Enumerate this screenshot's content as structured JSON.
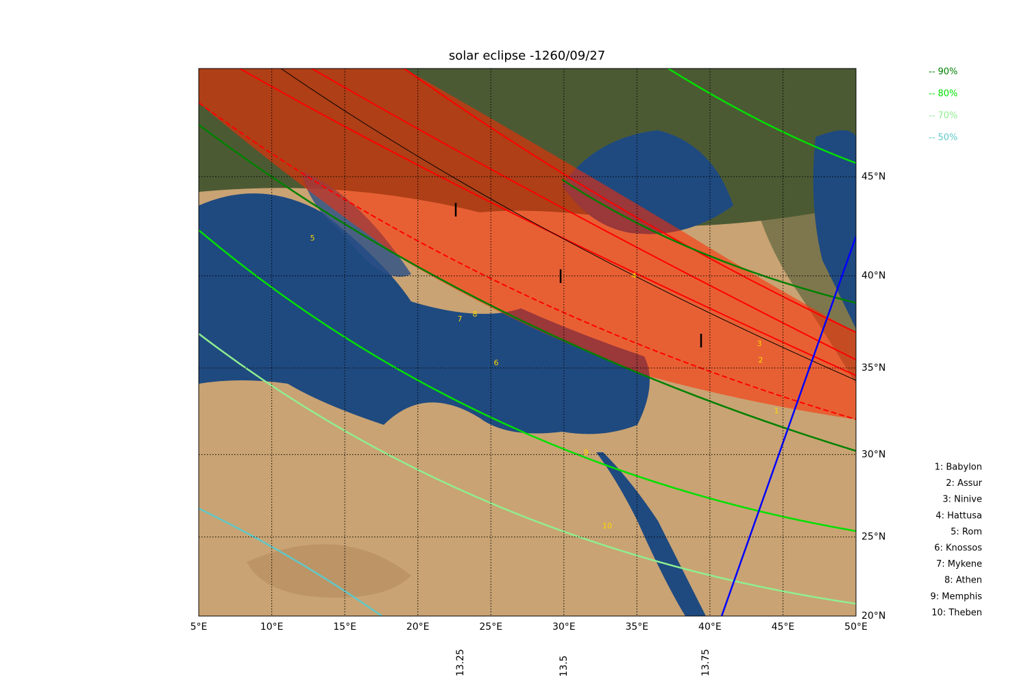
{
  "title": "solar eclipse -1260/09/27",
  "map": {
    "xlim": [
      5,
      50
    ],
    "ylim": [
      20,
      50
    ],
    "xticks": [
      {
        "value": 5,
        "label": "5°E"
      },
      {
        "value": 10,
        "label": "10°E"
      },
      {
        "value": 15,
        "label": "15°E"
      },
      {
        "value": 20,
        "label": "20°E"
      },
      {
        "value": 25,
        "label": "25°E"
      },
      {
        "value": 30,
        "label": "30°E"
      },
      {
        "value": 35,
        "label": "35°E"
      },
      {
        "value": 40,
        "label": "40°E"
      },
      {
        "value": 45,
        "label": "45°E"
      },
      {
        "value": 50,
        "label": "50°E"
      }
    ],
    "yticks": [
      {
        "value": 20,
        "label": "20°N"
      },
      {
        "value": 25,
        "label": "25°N"
      },
      {
        "value": 30,
        "label": "30°N"
      },
      {
        "value": 35,
        "label": "35°N"
      },
      {
        "value": 40,
        "label": "40°N"
      },
      {
        "value": 45,
        "label": "45°N"
      }
    ],
    "grid": true
  },
  "legend": [
    {
      "label": "-- 90%",
      "color": "#008000"
    },
    {
      "label": "-- 80%",
      "color": "#00e000"
    },
    {
      "label": "-- 70%",
      "color": "#90ee90"
    },
    {
      "label": "-- 50%",
      "color": "#60c8c8"
    }
  ],
  "time_labels": [
    "13.25",
    "13.5",
    "13.75"
  ],
  "map_labels": [
    "1",
    "2",
    "3",
    "4",
    "5",
    "6",
    "7",
    "8",
    "9",
    "10"
  ],
  "city_list": [
    "1: Babylon",
    "2: Assur",
    "3: Ninive",
    "4: Hattusa",
    "5: Rom",
    "6: Knossos",
    "7: Mykene",
    "8: Athen",
    "9: Memphis",
    "10: Theben"
  ]
}
